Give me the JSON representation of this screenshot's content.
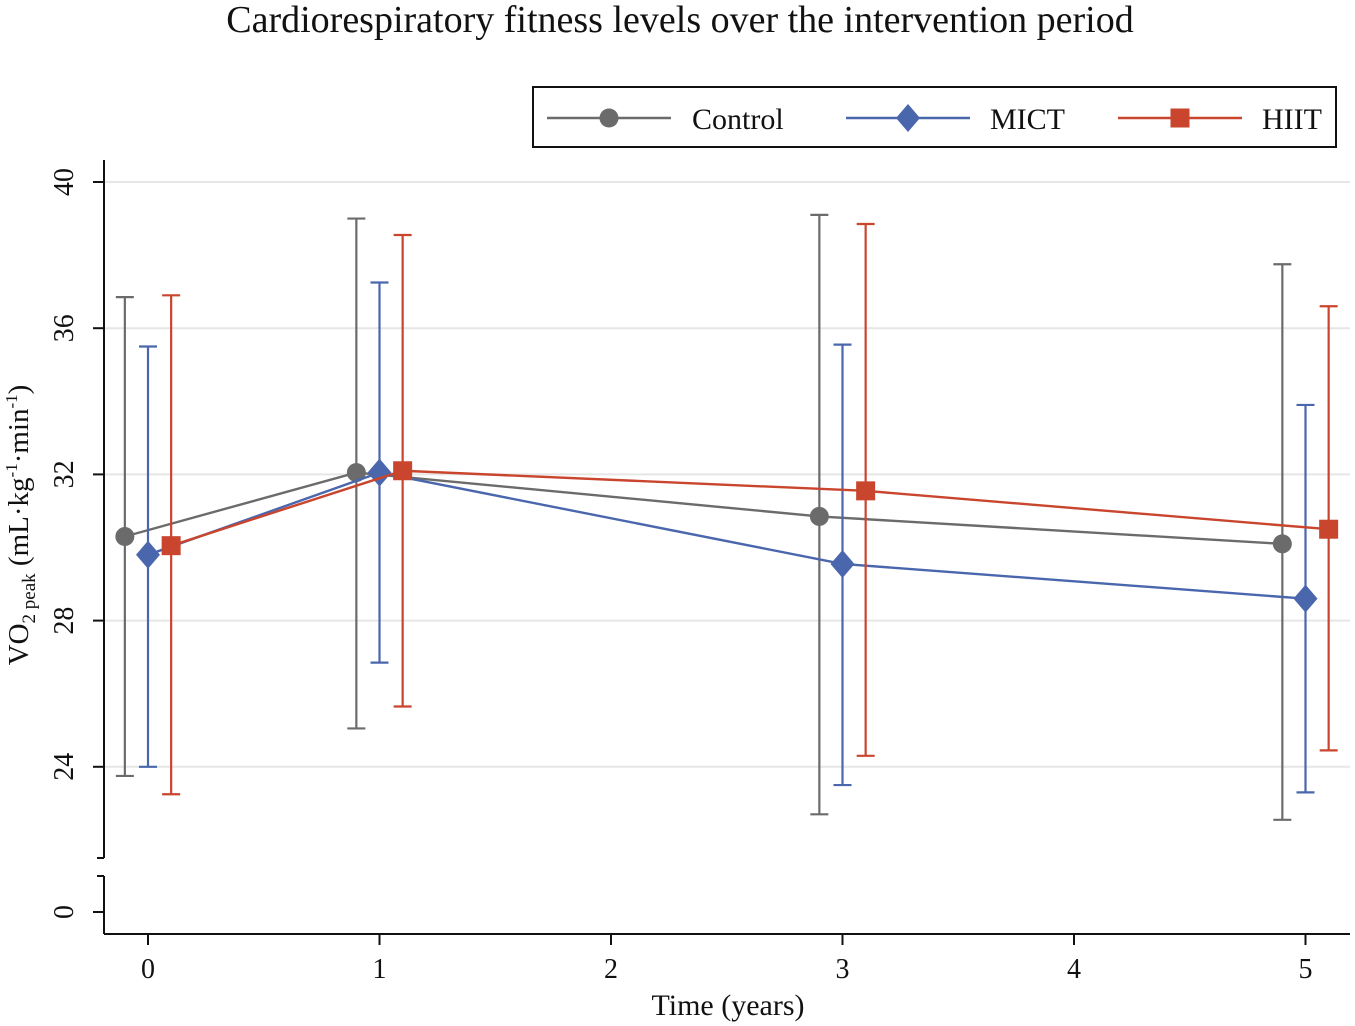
{
  "chart_data": {
    "type": "line",
    "title": "Cardiorespiratory fitness levels over the intervention period",
    "xlabel": "Time (years)",
    "ylabel": {
      "main": "VO",
      "sub": "2 peak",
      "units_prefix": " (mL·kg",
      "exp1": "-1",
      "units_mid": "·min",
      "exp2": "-1",
      "units_suffix": ")"
    },
    "x_ticks": [
      "0",
      "1",
      "2",
      "3",
      "4",
      "5"
    ],
    "x_tick_values": [
      0,
      1,
      2,
      3,
      4,
      5
    ],
    "y_ticks": [
      "0",
      "24",
      "28",
      "32",
      "36",
      "40"
    ],
    "y_tick_values": [
      0,
      24,
      28,
      32,
      36,
      40
    ],
    "xlim": [
      -0.2,
      5.2
    ],
    "ylim": [
      0,
      40
    ],
    "y_axis_break": [
      0,
      22.5
    ],
    "grid": true,
    "legend_position": "top-right",
    "series": [
      {
        "name": "Control",
        "color": "#6b6b6b",
        "marker": "circle",
        "x": [
          0,
          1,
          3,
          5
        ],
        "x_offset": -0.1,
        "values": [
          30.3,
          32.05,
          30.85,
          30.1
        ],
        "lower": [
          23.75,
          25.05,
          22.7,
          22.55
        ],
        "upper": [
          36.85,
          39.0,
          39.1,
          37.75
        ]
      },
      {
        "name": "MICT",
        "color": "#4a67ad",
        "marker": "diamond",
        "x": [
          0,
          1,
          3,
          5
        ],
        "x_offset": 0,
        "values": [
          29.8,
          32.05,
          29.55,
          28.6
        ],
        "lower": [
          24.0,
          26.85,
          23.5,
          23.3
        ],
        "upper": [
          35.5,
          37.25,
          35.55,
          33.9
        ]
      },
      {
        "name": "HIIT",
        "color": "#c9452e",
        "marker": "square",
        "x": [
          0,
          1,
          3,
          5
        ],
        "x_offset": 0.1,
        "values": [
          30.05,
          32.1,
          31.55,
          30.5
        ],
        "lower": [
          23.25,
          25.65,
          24.3,
          24.45
        ],
        "upper": [
          36.9,
          38.55,
          38.85,
          36.6
        ]
      }
    ]
  }
}
